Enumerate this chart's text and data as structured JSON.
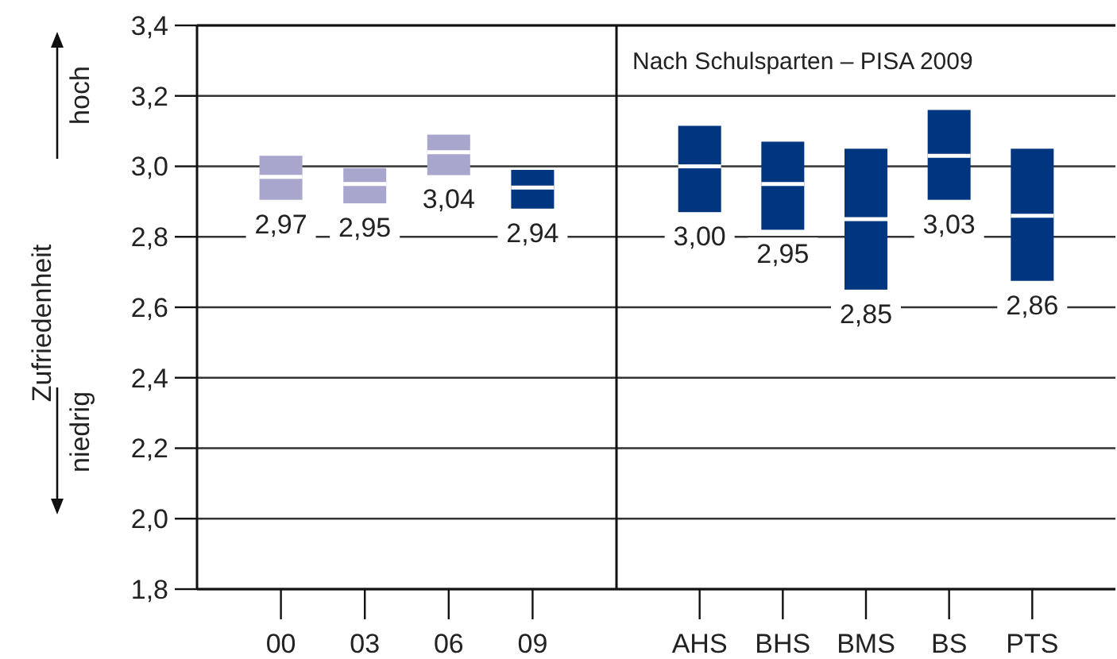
{
  "chart_data": [
    {
      "type": "box",
      "ylabel": "Zufriedenheit",
      "annotations": [
        "hoch",
        "niedrig"
      ],
      "categories": [
        "00",
        "03",
        "06",
        "09"
      ],
      "boxes": [
        {
          "low": 2.905,
          "q1": 2.905,
          "median": 2.97,
          "q3": 3.03,
          "high": 3.03
        },
        {
          "low": 2.895,
          "q1": 2.895,
          "median": 2.95,
          "q3": 2.995,
          "high": 2.995
        },
        {
          "low": 2.975,
          "q1": 2.975,
          "median": 3.04,
          "q3": 3.09,
          "high": 3.09
        },
        {
          "low": 2.88,
          "q1": 2.88,
          "median": 2.94,
          "q3": 2.99,
          "high": 2.99
        }
      ],
      "colors": [
        "#a8a6cc",
        "#a8a6cc",
        "#a8a6cc",
        "#003580"
      ],
      "value_labels": [
        "2,97",
        "2,95",
        "3,04",
        "2,94"
      ],
      "ylim": [
        1.8,
        3.4
      ],
      "yticks": [
        {
          "value": 1.8,
          "label": "1,8"
        },
        {
          "value": 2.0,
          "label": "2,0"
        },
        {
          "value": 2.2,
          "label": "2,2"
        },
        {
          "value": 2.4,
          "label": "2,4"
        },
        {
          "value": 2.6,
          "label": "2,6"
        },
        {
          "value": 2.8,
          "label": "2,8"
        },
        {
          "value": 3.0,
          "label": "3,0"
        },
        {
          "value": 3.2,
          "label": "3,2"
        },
        {
          "value": 3.4,
          "label": "3,4"
        }
      ],
      "grid": "y"
    },
    {
      "type": "box",
      "title": "Nach Schulsparten – PISA 2009",
      "categories": [
        "AHS",
        "BHS",
        "BMS",
        "BS",
        "PTS"
      ],
      "boxes": [
        {
          "low": 2.87,
          "q1": 2.87,
          "median": 3.0,
          "q3": 3.115,
          "high": 3.115
        },
        {
          "low": 2.82,
          "q1": 2.82,
          "median": 2.95,
          "q3": 3.07,
          "high": 3.07
        },
        {
          "low": 2.65,
          "q1": 2.65,
          "median": 2.85,
          "q3": 3.05,
          "high": 3.05
        },
        {
          "low": 2.905,
          "q1": 2.905,
          "median": 3.03,
          "q3": 3.16,
          "high": 3.16
        },
        {
          "low": 2.675,
          "q1": 2.675,
          "median": 2.86,
          "q3": 3.05,
          "high": 3.05
        }
      ],
      "colors": [
        "#003580",
        "#003580",
        "#003580",
        "#003580",
        "#003580"
      ],
      "value_labels": [
        "3,00",
        "2,95",
        "2,85",
        "3,03",
        "2,86"
      ],
      "ylim": [
        1.8,
        3.4
      ],
      "yticks": [
        1.8,
        2.0,
        2.2,
        2.4,
        2.6,
        2.8,
        3.0,
        3.2,
        3.4
      ],
      "grid": "y",
      "tick_labels": "x"
    }
  ]
}
